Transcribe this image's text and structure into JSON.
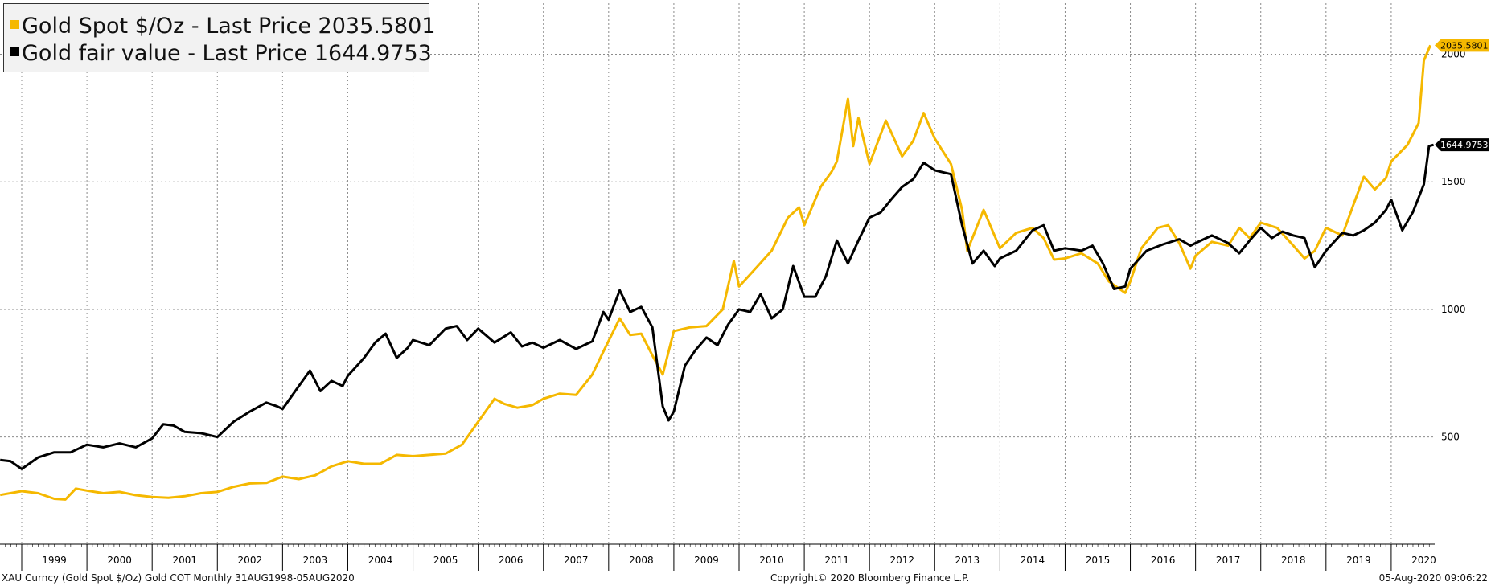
{
  "legend": [
    {
      "name": "Gold Spot $/Oz - Last Price",
      "value": "2035.5801",
      "color": "#f5b800"
    },
    {
      "name": "Gold fair value - Last Price",
      "value": "1644.9753",
      "color": "#000000"
    }
  ],
  "footer": {
    "left": "XAU Curncy (Gold Spot  $/Oz) Gold COT  Monthly 31AUG1998-05AUG2020",
    "center": "Copyright© 2020 Bloomberg Finance L.P.",
    "right": "05-Aug-2020 09:06:22"
  },
  "chart_data": {
    "type": "line",
    "xlim": [
      1998.667,
      2020.667
    ],
    "ylim": [
      80,
      2200
    ],
    "y_ticks": [
      500,
      1000,
      1500,
      2000
    ],
    "x_tick_labels": [
      "1999",
      "2000",
      "2001",
      "2002",
      "2003",
      "2004",
      "2005",
      "2006",
      "2007",
      "2008",
      "2009",
      "2010",
      "2011",
      "2012",
      "2013",
      "2014",
      "2015",
      "2016",
      "2017",
      "2018",
      "2019",
      "2020"
    ],
    "grid": true,
    "legend_position": "top-left",
    "last_value_tags": [
      "2035.5801",
      "1644.9753"
    ],
    "series": [
      {
        "name": "Gold Spot $/Oz",
        "color": "#f5b800",
        "points": [
          [
            1998.67,
            273
          ],
          [
            1999.0,
            288
          ],
          [
            1999.25,
            280
          ],
          [
            1999.5,
            258
          ],
          [
            1999.67,
            255
          ],
          [
            1999.83,
            298
          ],
          [
            2000.0,
            290
          ],
          [
            2000.25,
            280
          ],
          [
            2000.5,
            285
          ],
          [
            2000.75,
            272
          ],
          [
            2001.0,
            265
          ],
          [
            2001.25,
            262
          ],
          [
            2001.5,
            268
          ],
          [
            2001.75,
            280
          ],
          [
            2002.0,
            285
          ],
          [
            2002.25,
            305
          ],
          [
            2002.5,
            318
          ],
          [
            2002.75,
            320
          ],
          [
            2003.0,
            345
          ],
          [
            2003.25,
            335
          ],
          [
            2003.5,
            350
          ],
          [
            2003.75,
            385
          ],
          [
            2004.0,
            405
          ],
          [
            2004.25,
            395
          ],
          [
            2004.5,
            395
          ],
          [
            2004.75,
            430
          ],
          [
            2005.0,
            425
          ],
          [
            2005.25,
            430
          ],
          [
            2005.5,
            435
          ],
          [
            2005.75,
            470
          ],
          [
            2006.0,
            560
          ],
          [
            2006.25,
            650
          ],
          [
            2006.4,
            630
          ],
          [
            2006.6,
            615
          ],
          [
            2006.83,
            625
          ],
          [
            2007.0,
            650
          ],
          [
            2007.25,
            670
          ],
          [
            2007.5,
            665
          ],
          [
            2007.75,
            745
          ],
          [
            2007.92,
            835
          ],
          [
            2008.17,
            965
          ],
          [
            2008.33,
            900
          ],
          [
            2008.5,
            905
          ],
          [
            2008.67,
            820
          ],
          [
            2008.83,
            745
          ],
          [
            2009.0,
            915
          ],
          [
            2009.25,
            930
          ],
          [
            2009.5,
            935
          ],
          [
            2009.75,
            1000
          ],
          [
            2009.92,
            1190
          ],
          [
            2010.0,
            1090
          ],
          [
            2010.25,
            1160
          ],
          [
            2010.5,
            1230
          ],
          [
            2010.75,
            1360
          ],
          [
            2010.92,
            1400
          ],
          [
            2011.0,
            1330
          ],
          [
            2011.25,
            1480
          ],
          [
            2011.42,
            1540
          ],
          [
            2011.5,
            1580
          ],
          [
            2011.67,
            1825
          ],
          [
            2011.75,
            1640
          ],
          [
            2011.83,
            1750
          ],
          [
            2012.0,
            1570
          ],
          [
            2012.25,
            1740
          ],
          [
            2012.5,
            1600
          ],
          [
            2012.67,
            1660
          ],
          [
            2012.83,
            1770
          ],
          [
            2013.0,
            1670
          ],
          [
            2013.25,
            1570
          ],
          [
            2013.42,
            1390
          ],
          [
            2013.5,
            1230
          ],
          [
            2013.75,
            1390
          ],
          [
            2014.0,
            1240
          ],
          [
            2014.25,
            1300
          ],
          [
            2014.5,
            1320
          ],
          [
            2014.67,
            1280
          ],
          [
            2014.83,
            1195
          ],
          [
            2015.0,
            1200
          ],
          [
            2015.25,
            1220
          ],
          [
            2015.5,
            1180
          ],
          [
            2015.67,
            1110
          ],
          [
            2015.92,
            1065
          ],
          [
            2016.0,
            1110
          ],
          [
            2016.17,
            1240
          ],
          [
            2016.42,
            1320
          ],
          [
            2016.58,
            1330
          ],
          [
            2016.75,
            1260
          ],
          [
            2016.92,
            1160
          ],
          [
            2017.0,
            1210
          ],
          [
            2017.25,
            1265
          ],
          [
            2017.5,
            1250
          ],
          [
            2017.67,
            1320
          ],
          [
            2017.83,
            1280
          ],
          [
            2018.0,
            1340
          ],
          [
            2018.25,
            1320
          ],
          [
            2018.5,
            1250
          ],
          [
            2018.67,
            1200
          ],
          [
            2018.83,
            1230
          ],
          [
            2019.0,
            1320
          ],
          [
            2019.25,
            1290
          ],
          [
            2019.42,
            1410
          ],
          [
            2019.58,
            1520
          ],
          [
            2019.75,
            1470
          ],
          [
            2019.92,
            1515
          ],
          [
            2020.0,
            1580
          ],
          [
            2020.25,
            1645
          ],
          [
            2020.42,
            1730
          ],
          [
            2020.5,
            1975
          ],
          [
            2020.6,
            2035
          ]
        ]
      },
      {
        "name": "Gold fair value",
        "color": "#000000",
        "points": [
          [
            1998.67,
            410
          ],
          [
            1998.83,
            405
          ],
          [
            1999.0,
            375
          ],
          [
            1999.25,
            420
          ],
          [
            1999.5,
            440
          ],
          [
            1999.75,
            440
          ],
          [
            2000.0,
            470
          ],
          [
            2000.25,
            460
          ],
          [
            2000.5,
            475
          ],
          [
            2000.75,
            460
          ],
          [
            2001.0,
            495
          ],
          [
            2001.17,
            550
          ],
          [
            2001.33,
            545
          ],
          [
            2001.5,
            520
          ],
          [
            2001.75,
            515
          ],
          [
            2002.0,
            500
          ],
          [
            2002.25,
            560
          ],
          [
            2002.5,
            600
          ],
          [
            2002.75,
            635
          ],
          [
            2002.92,
            620
          ],
          [
            2003.0,
            610
          ],
          [
            2003.25,
            700
          ],
          [
            2003.42,
            760
          ],
          [
            2003.58,
            680
          ],
          [
            2003.75,
            720
          ],
          [
            2003.92,
            700
          ],
          [
            2004.0,
            740
          ],
          [
            2004.25,
            810
          ],
          [
            2004.42,
            870
          ],
          [
            2004.58,
            905
          ],
          [
            2004.75,
            810
          ],
          [
            2004.92,
            850
          ],
          [
            2005.0,
            880
          ],
          [
            2005.25,
            860
          ],
          [
            2005.5,
            925
          ],
          [
            2005.67,
            935
          ],
          [
            2005.83,
            880
          ],
          [
            2006.0,
            925
          ],
          [
            2006.25,
            870
          ],
          [
            2006.5,
            910
          ],
          [
            2006.67,
            855
          ],
          [
            2006.83,
            870
          ],
          [
            2007.0,
            850
          ],
          [
            2007.25,
            880
          ],
          [
            2007.5,
            845
          ],
          [
            2007.75,
            875
          ],
          [
            2007.92,
            990
          ],
          [
            2008.0,
            960
          ],
          [
            2008.17,
            1075
          ],
          [
            2008.33,
            990
          ],
          [
            2008.5,
            1010
          ],
          [
            2008.67,
            930
          ],
          [
            2008.83,
            620
          ],
          [
            2008.92,
            565
          ],
          [
            2009.0,
            600
          ],
          [
            2009.17,
            780
          ],
          [
            2009.33,
            840
          ],
          [
            2009.5,
            890
          ],
          [
            2009.67,
            860
          ],
          [
            2009.83,
            940
          ],
          [
            2010.0,
            1000
          ],
          [
            2010.17,
            990
          ],
          [
            2010.33,
            1060
          ],
          [
            2010.5,
            965
          ],
          [
            2010.67,
            1000
          ],
          [
            2010.83,
            1170
          ],
          [
            2011.0,
            1050
          ],
          [
            2011.17,
            1050
          ],
          [
            2011.33,
            1130
          ],
          [
            2011.5,
            1270
          ],
          [
            2011.67,
            1180
          ],
          [
            2011.83,
            1270
          ],
          [
            2012.0,
            1360
          ],
          [
            2012.17,
            1380
          ],
          [
            2012.33,
            1430
          ],
          [
            2012.5,
            1480
          ],
          [
            2012.67,
            1510
          ],
          [
            2012.83,
            1575
          ],
          [
            2013.0,
            1545
          ],
          [
            2013.25,
            1530
          ],
          [
            2013.42,
            1330
          ],
          [
            2013.58,
            1180
          ],
          [
            2013.75,
            1230
          ],
          [
            2013.92,
            1170
          ],
          [
            2014.0,
            1200
          ],
          [
            2014.25,
            1230
          ],
          [
            2014.5,
            1310
          ],
          [
            2014.67,
            1330
          ],
          [
            2014.83,
            1230
          ],
          [
            2015.0,
            1240
          ],
          [
            2015.25,
            1230
          ],
          [
            2015.42,
            1250
          ],
          [
            2015.58,
            1180
          ],
          [
            2015.75,
            1080
          ],
          [
            2015.92,
            1090
          ],
          [
            2016.0,
            1160
          ],
          [
            2016.25,
            1230
          ],
          [
            2016.5,
            1255
          ],
          [
            2016.75,
            1275
          ],
          [
            2016.92,
            1250
          ],
          [
            2017.0,
            1260
          ],
          [
            2017.25,
            1290
          ],
          [
            2017.5,
            1260
          ],
          [
            2017.67,
            1220
          ],
          [
            2017.83,
            1270
          ],
          [
            2018.0,
            1320
          ],
          [
            2018.17,
            1280
          ],
          [
            2018.33,
            1305
          ],
          [
            2018.5,
            1290
          ],
          [
            2018.67,
            1280
          ],
          [
            2018.83,
            1165
          ],
          [
            2019.0,
            1230
          ],
          [
            2019.25,
            1300
          ],
          [
            2019.42,
            1290
          ],
          [
            2019.58,
            1310
          ],
          [
            2019.75,
            1340
          ],
          [
            2019.92,
            1390
          ],
          [
            2020.0,
            1430
          ],
          [
            2020.17,
            1310
          ],
          [
            2020.33,
            1380
          ],
          [
            2020.5,
            1490
          ],
          [
            2020.58,
            1640
          ],
          [
            2020.65,
            1645
          ]
        ]
      }
    ]
  }
}
